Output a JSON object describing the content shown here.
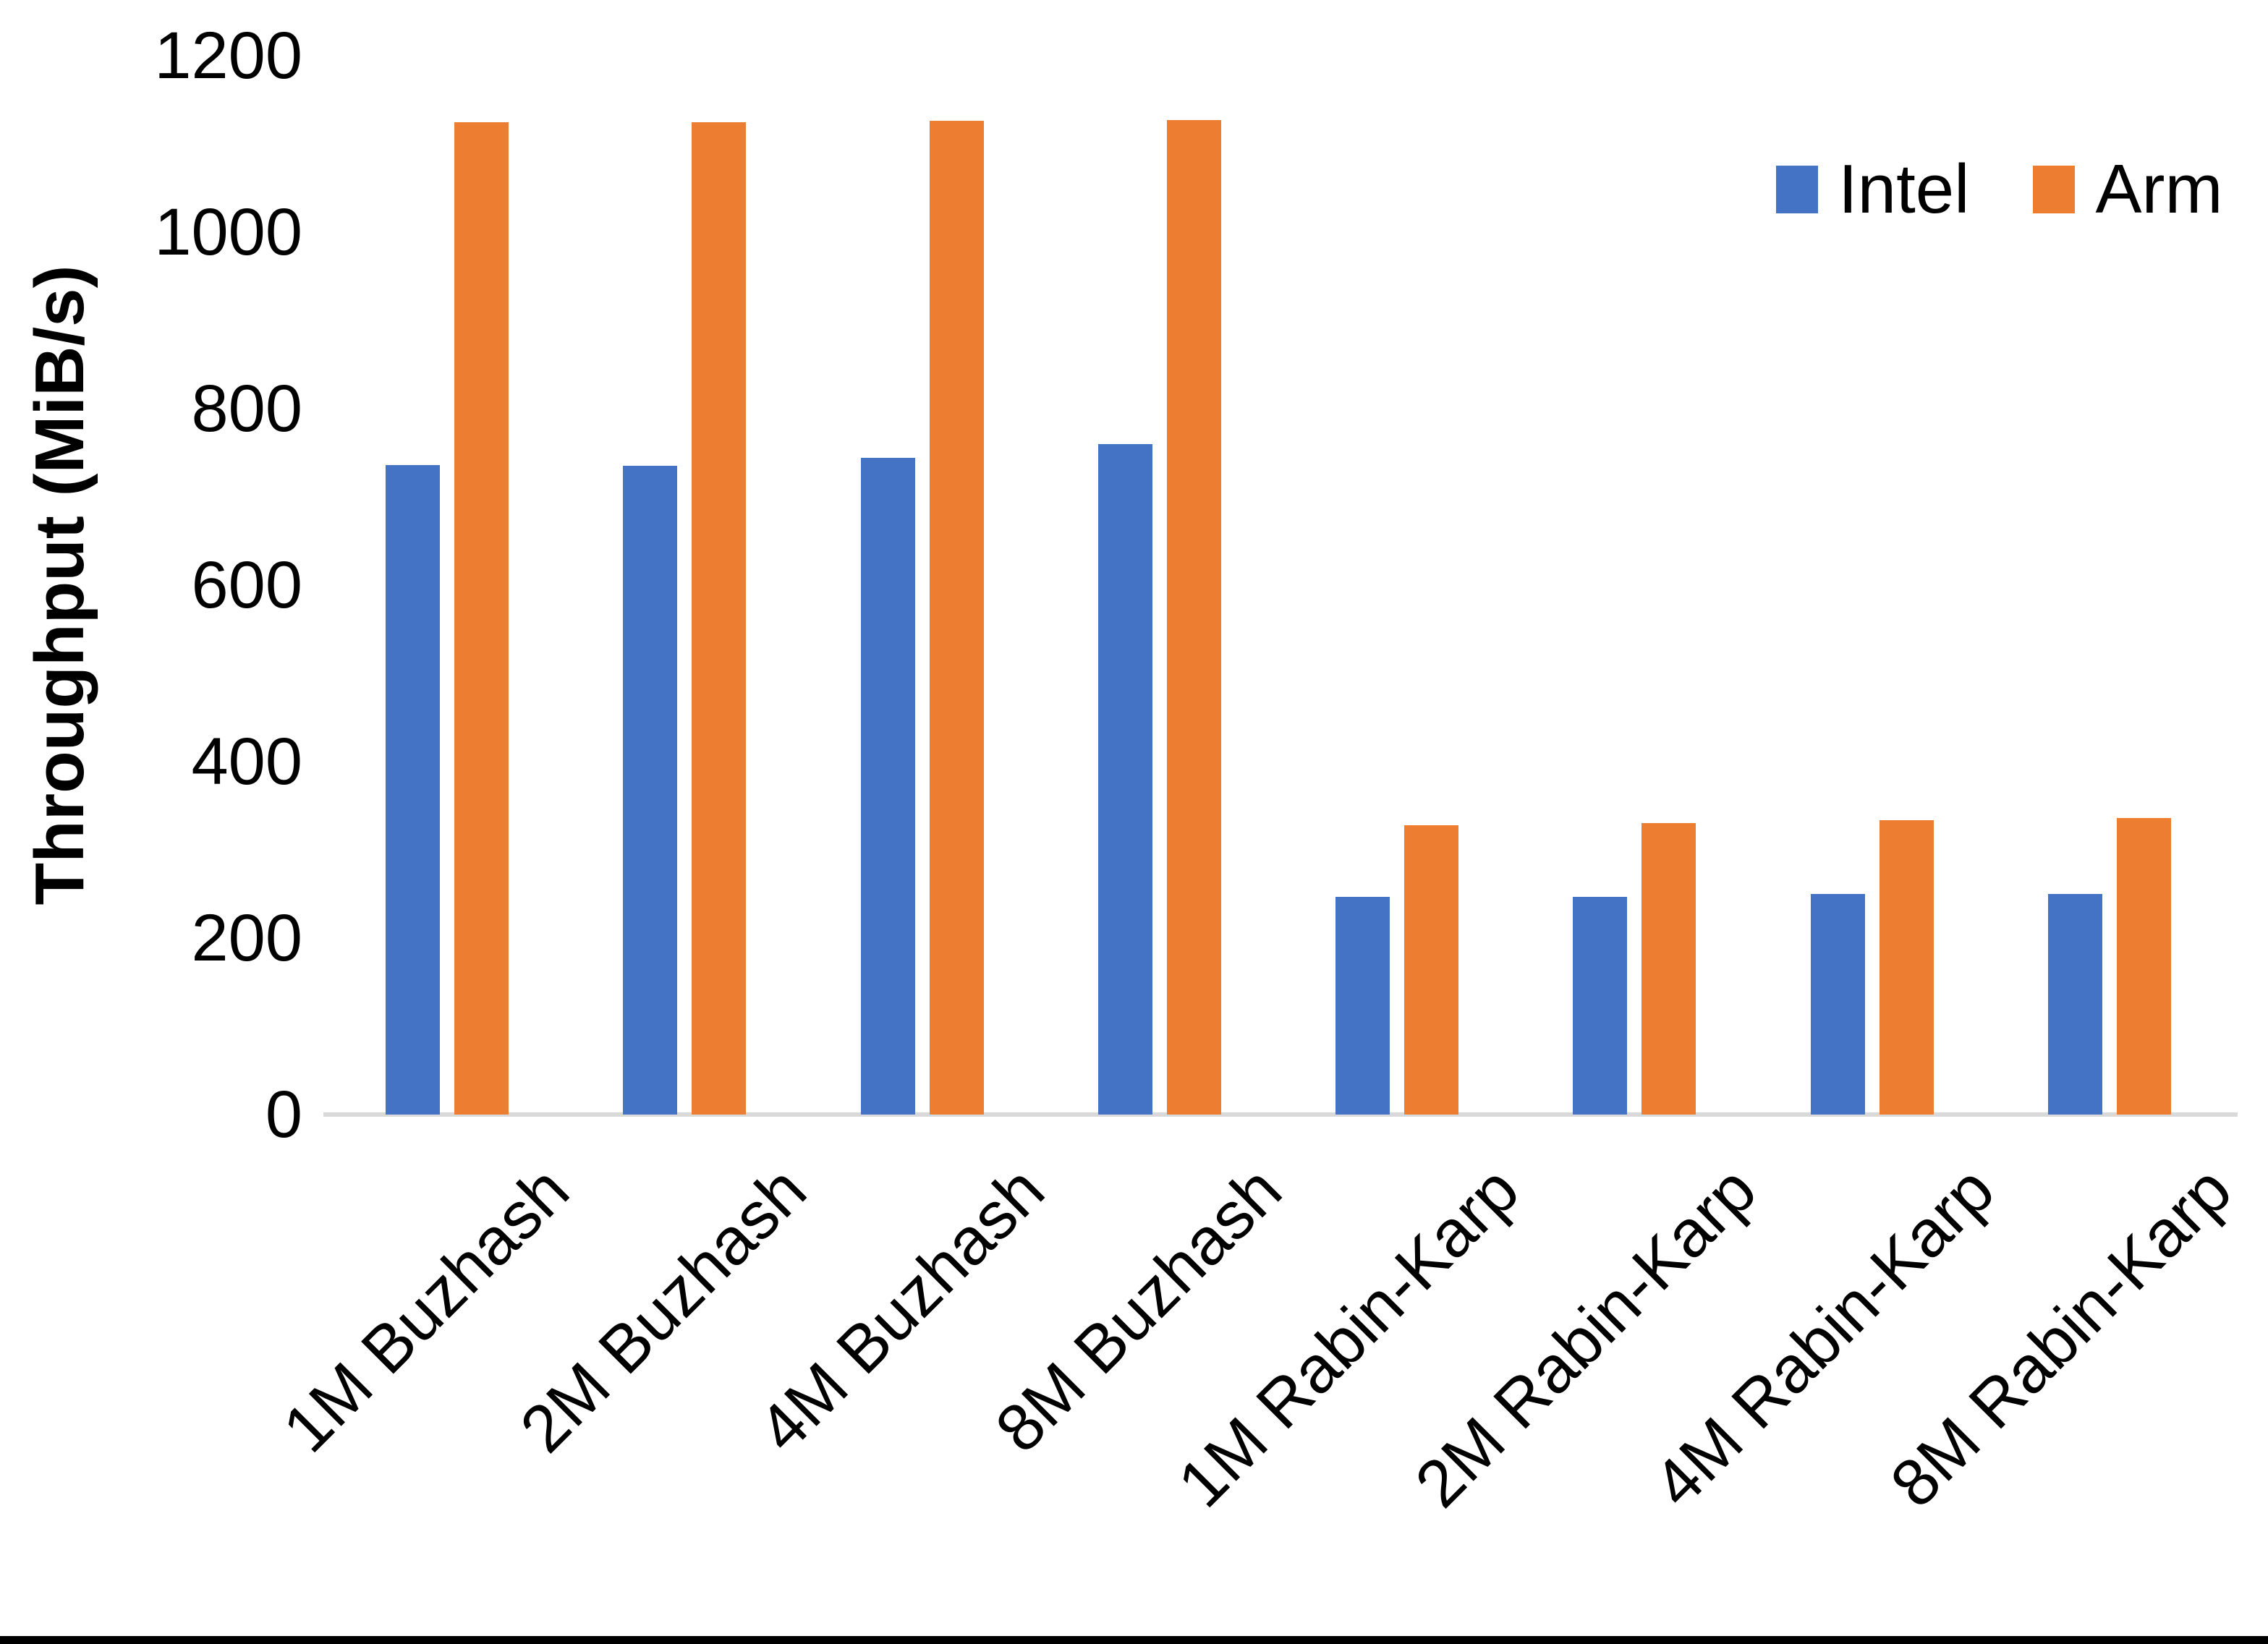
{
  "chart_data": {
    "type": "bar",
    "title": "",
    "xlabel": "",
    "ylabel": "Throughput (MiB/s)",
    "ylim": [
      0,
      1200
    ],
    "yticks": [
      0,
      200,
      400,
      600,
      800,
      1000,
      1200
    ],
    "grid": false,
    "legend_position": "top-right",
    "categories": [
      "1M Buzhash",
      "2M Buzhash",
      "4M Buzhash",
      "8M Buzhash",
      "1M Rabin-Karp",
      "2M Rabin-Karp",
      "4M Rabin-Karp",
      "8M Rabin-Karp"
    ],
    "series": [
      {
        "name": "Intel",
        "color": "#4472C4",
        "values": [
          736,
          735,
          744,
          760,
          247,
          247,
          250,
          250
        ]
      },
      {
        "name": "Arm",
        "color": "#ED7D31",
        "values": [
          1125,
          1125,
          1126,
          1127,
          328,
          330,
          334,
          336
        ]
      }
    ]
  },
  "colors": {
    "axis_line": "#D9D9D9",
    "text": "#000000",
    "background": "#FFFFFF",
    "bottom_border": "#000000"
  }
}
